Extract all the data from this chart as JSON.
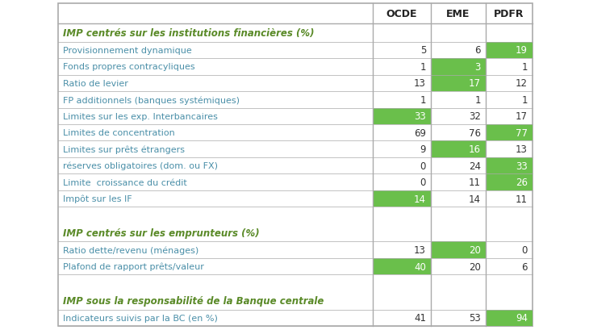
{
  "headers": [
    "OCDE",
    "EME",
    "PDFR"
  ],
  "rows": [
    {
      "label": "IMP centrés sur les institutions financières (%)",
      "values": [
        null,
        null,
        null
      ],
      "header_row": true,
      "spacer": false
    },
    {
      "label": "Provisionnement dynamique",
      "values": [
        5,
        6,
        19
      ],
      "highlights": [
        false,
        false,
        true
      ],
      "header_row": false,
      "spacer": false
    },
    {
      "label": "Fonds propres contracyliques",
      "values": [
        1,
        3,
        1
      ],
      "highlights": [
        false,
        true,
        false
      ],
      "header_row": false,
      "spacer": false
    },
    {
      "label": "Ratio de levier",
      "values": [
        13,
        17,
        12
      ],
      "highlights": [
        false,
        true,
        false
      ],
      "header_row": false,
      "spacer": false
    },
    {
      "label": "FP additionnels (banques systémiques)",
      "values": [
        1,
        1,
        1
      ],
      "highlights": [
        false,
        false,
        false
      ],
      "header_row": false,
      "spacer": false
    },
    {
      "label": "Limites sur les exp. Interbancaires",
      "values": [
        33,
        32,
        17
      ],
      "highlights": [
        true,
        false,
        false
      ],
      "header_row": false,
      "spacer": false
    },
    {
      "label": "Limites de concentration",
      "values": [
        69,
        76,
        77
      ],
      "highlights": [
        false,
        false,
        true
      ],
      "header_row": false,
      "spacer": false
    },
    {
      "label": "Limites sur prêts étrangers",
      "values": [
        9,
        16,
        13
      ],
      "highlights": [
        false,
        true,
        false
      ],
      "header_row": false,
      "spacer": false
    },
    {
      "label": "réserves obligatoires (dom. ou FX)",
      "values": [
        0,
        24,
        33
      ],
      "highlights": [
        false,
        false,
        true
      ],
      "header_row": false,
      "spacer": false
    },
    {
      "label": "Limite  croissance du crédit",
      "values": [
        0,
        11,
        26
      ],
      "highlights": [
        false,
        false,
        true
      ],
      "header_row": false,
      "spacer": false
    },
    {
      "label": "Impôt sur les IF",
      "values": [
        14,
        14,
        11
      ],
      "highlights": [
        true,
        false,
        false
      ],
      "header_row": false,
      "spacer": false
    },
    {
      "label": "",
      "values": [
        null,
        null,
        null
      ],
      "highlights": [
        false,
        false,
        false
      ],
      "header_row": false,
      "spacer": true
    },
    {
      "label": "IMP centrés sur les emprunteurs (%)",
      "values": [
        null,
        null,
        null
      ],
      "header_row": true,
      "spacer": false
    },
    {
      "label": "Ratio dette/revenu (ménages)",
      "values": [
        13,
        20,
        0
      ],
      "highlights": [
        false,
        true,
        false
      ],
      "header_row": false,
      "spacer": false
    },
    {
      "label": "Plafond de rapport prêts/valeur",
      "values": [
        40,
        20,
        6
      ],
      "highlights": [
        true,
        false,
        false
      ],
      "header_row": false,
      "spacer": false
    },
    {
      "label": "",
      "values": [
        null,
        null,
        null
      ],
      "highlights": [
        false,
        false,
        false
      ],
      "header_row": false,
      "spacer": true
    },
    {
      "label": "IMP sous la responsabilité de la Banque centrale",
      "values": [
        null,
        null,
        null
      ],
      "header_row": true,
      "spacer": false
    },
    {
      "label": "Indicateurs suivis par la BC (en %)",
      "values": [
        41,
        53,
        94
      ],
      "highlights": [
        false,
        false,
        true
      ],
      "header_row": false,
      "spacer": false
    }
  ],
  "green_color": "#6abf4b",
  "text_color_label": "#4a8fa8",
  "text_color_header": "#5a8a28",
  "text_color_value": "#333333",
  "border_color": "#aaaaaa",
  "background_color": "#ffffff",
  "col_header_color": "#222222",
  "fig_width": 7.3,
  "fig_height": 4.1,
  "dpi": 100
}
